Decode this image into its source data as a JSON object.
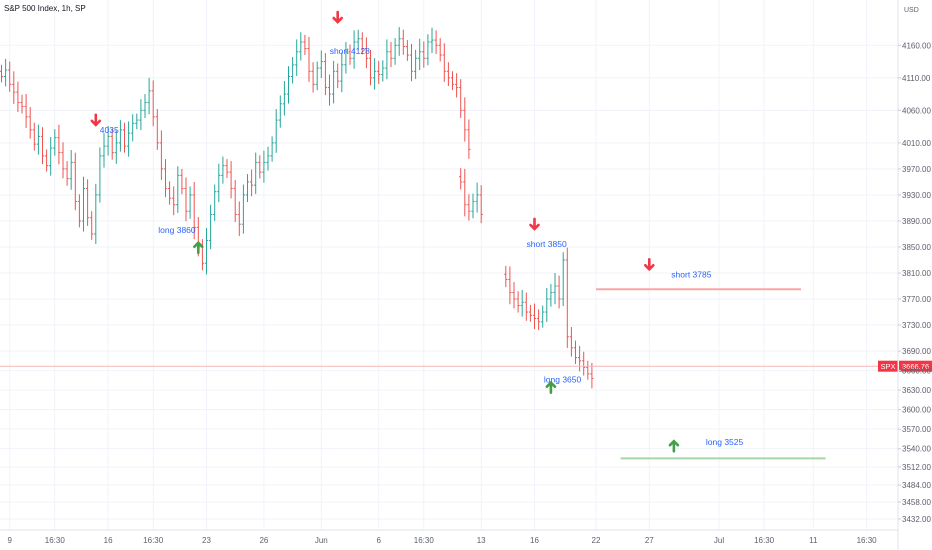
{
  "header": {
    "title": "S&P 500 Index, 1h, SP",
    "currency": "USD"
  },
  "colors": {
    "up": "#26a69a",
    "down": "#ef5350",
    "grid": "#f0f3fa",
    "accent": "#2962ff",
    "last": "#f23645",
    "arrow_down": "#f23645",
    "arrow_up": "#43a047",
    "line_short": "#f7a7a7",
    "line_long": "#a5d6a7"
  },
  "chart_data": {
    "type": "ohlc",
    "y_ticks": [
      4160,
      4110,
      4060,
      4010,
      3970,
      3930,
      3890,
      3850,
      3810,
      3770,
      3730,
      3690,
      3660,
      3630,
      3600,
      3570,
      3540,
      3512,
      3484,
      3458,
      3432
    ],
    "y_tick_labels": [
      "4160.00",
      "4110.00",
      "4060.00",
      "4010.00",
      "3970.00",
      "3930.00",
      "3890.00",
      "3850.00",
      "3810.00",
      "3770.00",
      "3730.00",
      "3690.00",
      "3660.00",
      "3630.00",
      "3600.00",
      "3570.00",
      "3540.00",
      "3512.00",
      "3484.00",
      "3458.00",
      "3432.00"
    ],
    "ylim": [
      3415,
      4205
    ],
    "x_ticks": [
      "9",
      "16:30",
      "16",
      "16:30",
      "23",
      "26",
      "Jun",
      "6",
      "16:30",
      "13",
      "16",
      "22",
      "27",
      "Jul",
      "16:30",
      "11",
      "16:30"
    ],
    "x_tick_bars": [
      2,
      13,
      26,
      37,
      50,
      64,
      78,
      92,
      103,
      117,
      130,
      145,
      158,
      175,
      186,
      198,
      211
    ],
    "last_price": {
      "symbol": "SPX",
      "value": 3666.76,
      "label": "3666.76"
    },
    "segments": [
      {
        "start": 0,
        "values": [
          4112,
          4122,
          4100,
          4088,
          4072,
          4066,
          4050,
          4030,
          4008,
          4020,
          3990,
          3975,
          4002,
          4018,
          3995,
          3970,
          3955,
          3980,
          3920,
          3890,
          3940,
          3895,
          3870,
          3930,
          3990,
          4005,
          4020,
          3995,
          4010,
          4030,
          4005,
          4025,
          4040,
          4045,
          4060,
          4072,
          4090,
          4050,
          4010,
          3970,
          3940,
          3925,
          3915,
          3960,
          3940,
          3905,
          3930,
          3880,
          3850,
          3825,
          3860,
          3900,
          3935,
          3960,
          3975,
          3965,
          3940,
          3900,
          3885,
          3930,
          3950,
          3945,
          3980,
          3965,
          3980,
          3990,
          4010,
          4045,
          4070,
          4085,
          4112,
          4130,
          4150,
          4165,
          4155,
          4120,
          4100,
          4125,
          4135,
          4095,
          4085,
          4120,
          4105,
          4130,
          4150,
          4140,
          4165,
          4170,
          4155,
          4140,
          4110,
          4120,
          4115,
          4125,
          4150,
          4140,
          4160,
          4170,
          4158,
          4145,
          4120,
          4140,
          4150,
          4140,
          4165,
          4168,
          4160,
          4145,
          4120,
          4110,
          4100,
          4095,
          4060,
          4030,
          4000
        ]
      },
      {
        "start": 112,
        "values": [
          3950,
          3915,
          3905,
          3920,
          3930,
          3900
        ]
      },
      {
        "start": 123,
        "values": [
          3800,
          3780,
          3770,
          3760,
          3765,
          3750,
          3745,
          3740,
          3735,
          3750,
          3770,
          3780,
          3790,
          3770,
          3830,
          3712,
          3695,
          3680,
          3675,
          3665,
          3655,
          3648
        ]
      }
    ],
    "annotations": [
      {
        "type": "arrow-down",
        "text": "4035",
        "bar": 23,
        "price": 4030
      },
      {
        "type": "arrow-up",
        "text": "long  3860",
        "bar": 48,
        "price": 3858
      },
      {
        "type": "arrow-down",
        "text": "short 4128",
        "bar": 82,
        "price": 4188
      },
      {
        "type": "arrow-down",
        "text": "short  3850",
        "bar": 130,
        "price": 3870
      },
      {
        "type": "arrow-up",
        "text": "long 3650",
        "bar": 134,
        "price": 3643
      },
      {
        "type": "arrow-down",
        "text": "short  3785",
        "bar": 158,
        "price": 3808
      },
      {
        "type": "arrow-up",
        "text": "long 3525",
        "bar": 164,
        "price": 3553
      }
    ],
    "levels": [
      {
        "name": "short",
        "price": 3785,
        "bar_from": 145,
        "bar_to": 195
      },
      {
        "name": "long",
        "price": 3525,
        "bar_from": 151,
        "bar_to": 201
      }
    ],
    "grid": true
  }
}
